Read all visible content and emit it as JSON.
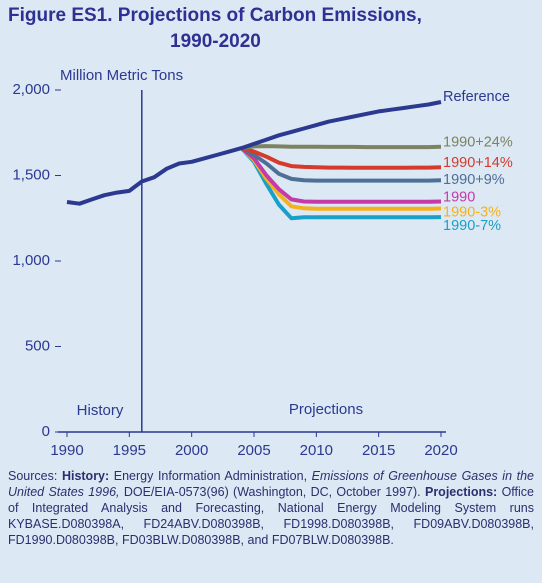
{
  "chart_data": {
    "type": "line",
    "title": [
      "Figure ES1.  Projections of Carbon Emissions,",
      "1990-2020"
    ],
    "y_axis_label": "Million Metric Tons",
    "annotations": [
      "History",
      "Projections"
    ],
    "history_divider": 1996,
    "x": [
      1990,
      1991,
      1992,
      1993,
      1994,
      1995,
      1996,
      1997,
      1998,
      1999,
      2000,
      2001,
      2002,
      2003,
      2004,
      2005,
      2006,
      2007,
      2008,
      2009,
      2010,
      2011,
      2012,
      2013,
      2014,
      2015,
      2016,
      2017,
      2018,
      2019,
      2020
    ],
    "xlim": [
      1990,
      2020
    ],
    "xticks": [
      1990,
      1995,
      2000,
      2005,
      2010,
      2015,
      2020
    ],
    "ylim": [
      0,
      2000
    ],
    "yticks": [
      {
        "value": 2000,
        "label": "2,000"
      },
      {
        "value": 1500,
        "label": "1,500"
      },
      {
        "value": 1000,
        "label": "1,000"
      },
      500,
      0
    ],
    "series": [
      {
        "name": "Reference",
        "color": "#2b3990",
        "values": [
          1345,
          1335,
          1360,
          1385,
          1400,
          1410,
          1465,
          1490,
          1540,
          1570,
          1580,
          1600,
          1620,
          1640,
          1660,
          1685,
          1710,
          1735,
          1755,
          1775,
          1795,
          1815,
          1830,
          1845,
          1860,
          1875,
          1885,
          1895,
          1905,
          1915,
          1930
        ]
      },
      {
        "name": "1990+24%",
        "color": "#7b8362",
        "values": [
          null,
          null,
          null,
          null,
          null,
          null,
          null,
          null,
          null,
          null,
          null,
          null,
          null,
          null,
          1660,
          1670,
          1672,
          1670,
          1668,
          1668,
          1668,
          1667,
          1667,
          1667,
          1666,
          1666,
          1666,
          1666,
          1666,
          1666,
          1668
        ]
      },
      {
        "name": "1990+14%",
        "color": "#d63a2a",
        "values": [
          null,
          null,
          null,
          null,
          null,
          null,
          null,
          null,
          null,
          null,
          null,
          null,
          null,
          null,
          1660,
          1640,
          1610,
          1575,
          1555,
          1550,
          1548,
          1546,
          1546,
          1545,
          1545,
          1545,
          1545,
          1545,
          1546,
          1546,
          1548
        ]
      },
      {
        "name": "1990+9%",
        "color": "#4e6f96",
        "values": [
          null,
          null,
          null,
          null,
          null,
          null,
          null,
          null,
          null,
          null,
          null,
          null,
          null,
          null,
          1660,
          1620,
          1570,
          1510,
          1480,
          1472,
          1470,
          1470,
          1470,
          1470,
          1470,
          1470,
          1470,
          1470,
          1470,
          1470,
          1472
        ]
      },
      {
        "name": "1990",
        "color": "#c33aa8",
        "values": [
          null,
          null,
          null,
          null,
          null,
          null,
          null,
          null,
          null,
          null,
          null,
          null,
          null,
          null,
          1660,
          1600,
          1500,
          1420,
          1360,
          1348,
          1346,
          1346,
          1346,
          1346,
          1346,
          1346,
          1346,
          1346,
          1346,
          1346,
          1348
        ]
      },
      {
        "name": "1990-3%",
        "color": "#f5b21a",
        "values": [
          null,
          null,
          null,
          null,
          null,
          null,
          null,
          null,
          null,
          null,
          null,
          null,
          null,
          null,
          1660,
          1590,
          1480,
          1390,
          1320,
          1308,
          1306,
          1306,
          1306,
          1306,
          1306,
          1306,
          1306,
          1306,
          1306,
          1306,
          1307
        ]
      },
      {
        "name": "1990-7%",
        "color": "#1aa0c8",
        "values": [
          null,
          null,
          null,
          null,
          null,
          null,
          null,
          null,
          null,
          null,
          null,
          null,
          null,
          null,
          1660,
          1580,
          1450,
          1330,
          1250,
          1256,
          1256,
          1256,
          1256,
          1256,
          1256,
          1256,
          1256,
          1256,
          1256,
          1256,
          1257
        ]
      }
    ],
    "sources": [
      {
        "text": "Sources:",
        "style": "normal"
      },
      {
        "text": "History:",
        "style": "bold"
      },
      {
        "text": "Energy Information Administration,",
        "style": "normal"
      },
      {
        "text": "Emissions of Greenhouse Gases in the United States 1996,",
        "style": "italic"
      },
      {
        "text": "DOE/EIA-0573(96) (Washington, DC, October 1997).",
        "style": "normal"
      },
      {
        "text": "Projections:",
        "style": "bold"
      },
      {
        "text": "Office of Integrated Analysis and Forecasting, National Energy Modeling System runs KYBASE.D080398A, FD24ABV.D080398B, FD1998.D080398B, FD09ABV.D080398B, FD1990.D080398B, FD03BLW.D080398B, and FD07BLW.D080398B.",
        "style": "normal"
      }
    ]
  }
}
